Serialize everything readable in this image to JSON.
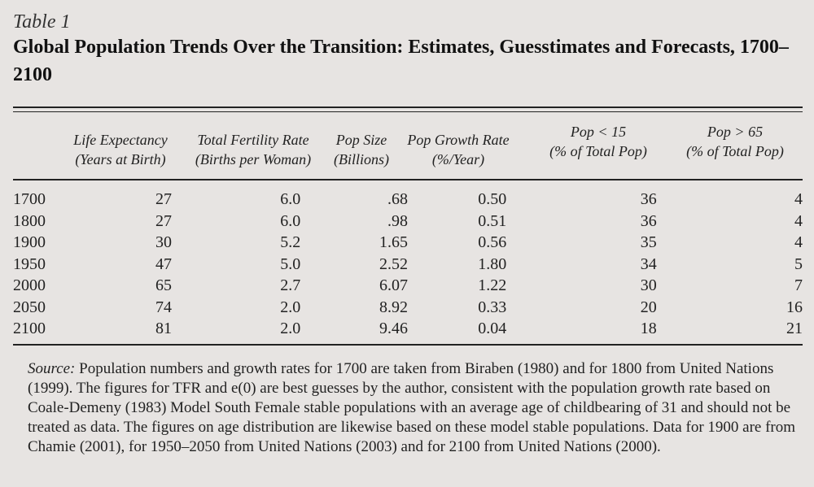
{
  "table_label": "Table 1",
  "title": "Global Population Trends Over the Transition: Estimates, Guesstimates and Forecasts, 1700–2100",
  "columns": [
    {
      "line1": "Life Expectancy",
      "line2": "(Years at Birth)"
    },
    {
      "line1": "Total Fertility Rate",
      "line2": "(Births per Woman)"
    },
    {
      "line1": "Pop Size",
      "line2": "(Billions)"
    },
    {
      "line1": "Pop Growth Rate",
      "line2": "(%/Year)"
    },
    {
      "line1": "Pop < 15",
      "line2": "(% of Total Pop)"
    },
    {
      "line1": "Pop > 65",
      "line2": "(% of Total Pop)"
    }
  ],
  "rows": [
    {
      "year": "1700",
      "le": "27",
      "tfr": "6.0",
      "pop": ".68",
      "growth": "0.50",
      "under15": "36",
      "over65": "4"
    },
    {
      "year": "1800",
      "le": "27",
      "tfr": "6.0",
      "pop": ".98",
      "growth": "0.51",
      "under15": "36",
      "over65": "4"
    },
    {
      "year": "1900",
      "le": "30",
      "tfr": "5.2",
      "pop": "1.65",
      "growth": "0.56",
      "under15": "35",
      "over65": "4"
    },
    {
      "year": "1950",
      "le": "47",
      "tfr": "5.0",
      "pop": "2.52",
      "growth": "1.80",
      "under15": "34",
      "over65": "5"
    },
    {
      "year": "2000",
      "le": "65",
      "tfr": "2.7",
      "pop": "6.07",
      "growth": "1.22",
      "under15": "30",
      "over65": "7"
    },
    {
      "year": "2050",
      "le": "74",
      "tfr": "2.0",
      "pop": "8.92",
      "growth": "0.33",
      "under15": "20",
      "over65": "16"
    },
    {
      "year": "2100",
      "le": "81",
      "tfr": "2.0",
      "pop": "9.46",
      "growth": "0.04",
      "under15": "18",
      "over65": "21"
    }
  ],
  "source": {
    "label": "Source:",
    "text": "Population numbers and growth rates for 1700 are taken from Biraben (1980) and for 1800 from United Nations (1999). The figures for TFR and e(0) are best guesses by the author, consistent with the population growth rate based on Coale-Demeny (1983) Model South Female stable populations with an average age of childbearing of 31 and should not be treated as data. The figures on age distribution are likewise based on these model stable populations. Data for 1900 are from Chamie (2001), for 1950–2050 from United Nations (2003) and for 2100 from United Nations (2000)."
  }
}
